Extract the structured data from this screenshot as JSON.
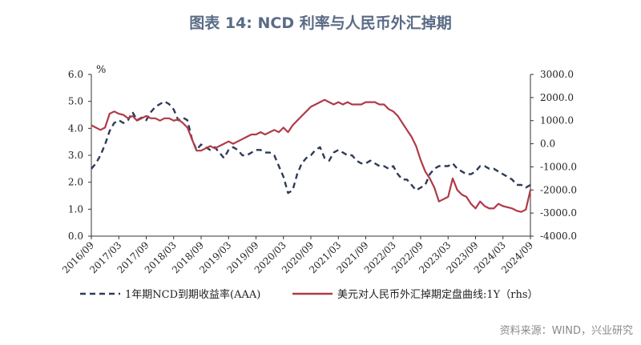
{
  "chart_data": {
    "type": "line",
    "title": "图表 14: NCD 利率与人民币外汇掉期",
    "left_unit": "%",
    "yaxis_left": {
      "ticks": [
        "6.0",
        "5.0",
        "4.0",
        "3.0",
        "2.0",
        "1.0",
        "0.0"
      ],
      "values": [
        6,
        5,
        4,
        3,
        2,
        1,
        0
      ],
      "ylim": [
        0,
        6
      ]
    },
    "yaxis_right": {
      "ticks": [
        "3000.0",
        "2000.0",
        "1000.0",
        "0.0",
        "-1000.0",
        "-2000.0",
        "-3000.0",
        "-4000.0"
      ],
      "values": [
        3000,
        2000,
        1000,
        0,
        -1000,
        -2000,
        -3000,
        -4000
      ],
      "ylim": [
        -4000,
        3000
      ]
    },
    "x_ticks": [
      "2016/09",
      "2017/03",
      "2017/09",
      "2018/03",
      "2018/09",
      "2019/03",
      "2019/09",
      "2020/03",
      "2020/09",
      "2021/03",
      "2021/09",
      "2022/03",
      "2022/09",
      "2023/03",
      "2023/09",
      "2024/03",
      "2024/09"
    ],
    "grid": false,
    "legend_position": "bottom",
    "series": [
      {
        "name": "1年期NCD到期收益率(AAA)",
        "axis": "left",
        "color": "#2e3a59",
        "style": "dashed",
        "points": [
          [
            "2016/09",
            2.5
          ],
          [
            "2016/10",
            2.7
          ],
          [
            "2016/11",
            3.0
          ],
          [
            "2016/12",
            3.4
          ],
          [
            "2017/01",
            3.9
          ],
          [
            "2017/02",
            4.2
          ],
          [
            "2017/03",
            4.3
          ],
          [
            "2017/04",
            4.2
          ],
          [
            "2017/05",
            4.3
          ],
          [
            "2017/06",
            4.6
          ],
          [
            "2017/07",
            4.3
          ],
          [
            "2017/08",
            4.4
          ],
          [
            "2017/09",
            4.3
          ],
          [
            "2017/10",
            4.6
          ],
          [
            "2017/11",
            4.8
          ],
          [
            "2017/12",
            4.9
          ],
          [
            "2018/01",
            5.0
          ],
          [
            "2018/02",
            4.9
          ],
          [
            "2018/03",
            4.7
          ],
          [
            "2018/04",
            4.3
          ],
          [
            "2018/05",
            4.4
          ],
          [
            "2018/06",
            4.3
          ],
          [
            "2018/07",
            3.6
          ],
          [
            "2018/08",
            3.2
          ],
          [
            "2018/09",
            3.4
          ],
          [
            "2018/10",
            3.3
          ],
          [
            "2018/11",
            3.2
          ],
          [
            "2018/12",
            3.3
          ],
          [
            "2019/01",
            3.1
          ],
          [
            "2019/02",
            2.9
          ],
          [
            "2019/03",
            3.2
          ],
          [
            "2019/04",
            3.3
          ],
          [
            "2019/05",
            3.2
          ],
          [
            "2019/06",
            3.0
          ],
          [
            "2019/07",
            3.0
          ],
          [
            "2019/08",
            3.1
          ],
          [
            "2019/09",
            3.2
          ],
          [
            "2019/10",
            3.2
          ],
          [
            "2019/11",
            3.1
          ],
          [
            "2019/12",
            3.1
          ],
          [
            "2020/01",
            3.0
          ],
          [
            "2020/02",
            2.6
          ],
          [
            "2020/03",
            2.2
          ],
          [
            "2020/04",
            1.6
          ],
          [
            "2020/05",
            1.7
          ],
          [
            "2020/06",
            2.3
          ],
          [
            "2020/07",
            2.7
          ],
          [
            "2020/08",
            2.9
          ],
          [
            "2020/09",
            3.0
          ],
          [
            "2020/10",
            3.2
          ],
          [
            "2020/11",
            3.3
          ],
          [
            "2020/12",
            2.9
          ],
          [
            "2021/01",
            2.8
          ],
          [
            "2021/02",
            3.1
          ],
          [
            "2021/03",
            3.2
          ],
          [
            "2021/04",
            3.1
          ],
          [
            "2021/05",
            3.0
          ],
          [
            "2021/06",
            3.0
          ],
          [
            "2021/07",
            2.8
          ],
          [
            "2021/08",
            2.7
          ],
          [
            "2021/09",
            2.7
          ],
          [
            "2021/10",
            2.8
          ],
          [
            "2021/11",
            2.7
          ],
          [
            "2021/12",
            2.6
          ],
          [
            "2022/01",
            2.6
          ],
          [
            "2022/02",
            2.5
          ],
          [
            "2022/03",
            2.6
          ],
          [
            "2022/04",
            2.3
          ],
          [
            "2022/05",
            2.1
          ],
          [
            "2022/06",
            2.1
          ],
          [
            "2022/07",
            1.9
          ],
          [
            "2022/08",
            1.7
          ],
          [
            "2022/09",
            1.8
          ],
          [
            "2022/10",
            1.9
          ],
          [
            "2022/11",
            2.3
          ],
          [
            "2022/12",
            2.5
          ],
          [
            "2023/01",
            2.6
          ],
          [
            "2023/02",
            2.6
          ],
          [
            "2023/03",
            2.6
          ],
          [
            "2023/04",
            2.7
          ],
          [
            "2023/05",
            2.5
          ],
          [
            "2023/06",
            2.4
          ],
          [
            "2023/07",
            2.3
          ],
          [
            "2023/08",
            2.3
          ],
          [
            "2023/09",
            2.4
          ],
          [
            "2023/10",
            2.6
          ],
          [
            "2023/11",
            2.6
          ],
          [
            "2023/12",
            2.5
          ],
          [
            "2024/01",
            2.5
          ],
          [
            "2024/02",
            2.4
          ],
          [
            "2024/03",
            2.3
          ],
          [
            "2024/04",
            2.2
          ],
          [
            "2024/05",
            2.1
          ],
          [
            "2024/06",
            1.9
          ],
          [
            "2024/07",
            1.9
          ],
          [
            "2024/08",
            1.8
          ],
          [
            "2024/09",
            1.9
          ]
        ]
      },
      {
        "name": "美元对人民币外汇掉期定盘曲线:1Y（rhs）",
        "axis": "right",
        "color": "#b03a48",
        "style": "solid",
        "points": [
          [
            "2016/09",
            800
          ],
          [
            "2016/10",
            700
          ],
          [
            "2016/11",
            600
          ],
          [
            "2016/12",
            700
          ],
          [
            "2017/01",
            1300
          ],
          [
            "2017/02",
            1400
          ],
          [
            "2017/03",
            1300
          ],
          [
            "2017/04",
            1250
          ],
          [
            "2017/05",
            1100
          ],
          [
            "2017/06",
            1200
          ],
          [
            "2017/07",
            1000
          ],
          [
            "2017/08",
            1100
          ],
          [
            "2017/09",
            1200
          ],
          [
            "2017/10",
            1100
          ],
          [
            "2017/11",
            1100
          ],
          [
            "2017/12",
            1000
          ],
          [
            "2018/01",
            1100
          ],
          [
            "2018/02",
            1100
          ],
          [
            "2018/03",
            1000
          ],
          [
            "2018/04",
            1050
          ],
          [
            "2018/05",
            900
          ],
          [
            "2018/06",
            700
          ],
          [
            "2018/07",
            200
          ],
          [
            "2018/08",
            -300
          ],
          [
            "2018/09",
            -300
          ],
          [
            "2018/10",
            -200
          ],
          [
            "2018/11",
            -100
          ],
          [
            "2018/12",
            -200
          ],
          [
            "2019/01",
            -100
          ],
          [
            "2019/02",
            0
          ],
          [
            "2019/03",
            100
          ],
          [
            "2019/04",
            0
          ],
          [
            "2019/05",
            100
          ],
          [
            "2019/06",
            200
          ],
          [
            "2019/07",
            300
          ],
          [
            "2019/08",
            400
          ],
          [
            "2019/09",
            400
          ],
          [
            "2019/10",
            500
          ],
          [
            "2019/11",
            400
          ],
          [
            "2019/12",
            500
          ],
          [
            "2020/01",
            600
          ],
          [
            "2020/02",
            500
          ],
          [
            "2020/03",
            700
          ],
          [
            "2020/04",
            500
          ],
          [
            "2020/05",
            800
          ],
          [
            "2020/06",
            1000
          ],
          [
            "2020/07",
            1200
          ],
          [
            "2020/08",
            1400
          ],
          [
            "2020/09",
            1600
          ],
          [
            "2020/10",
            1700
          ],
          [
            "2020/11",
            1800
          ],
          [
            "2020/12",
            1900
          ],
          [
            "2021/01",
            1800
          ],
          [
            "2021/02",
            1700
          ],
          [
            "2021/03",
            1800
          ],
          [
            "2021/04",
            1700
          ],
          [
            "2021/05",
            1800
          ],
          [
            "2021/06",
            1700
          ],
          [
            "2021/07",
            1700
          ],
          [
            "2021/08",
            1700
          ],
          [
            "2021/09",
            1800
          ],
          [
            "2021/10",
            1800
          ],
          [
            "2021/11",
            1800
          ],
          [
            "2021/12",
            1700
          ],
          [
            "2022/01",
            1700
          ],
          [
            "2022/02",
            1500
          ],
          [
            "2022/03",
            1400
          ],
          [
            "2022/04",
            1200
          ],
          [
            "2022/05",
            900
          ],
          [
            "2022/06",
            600
          ],
          [
            "2022/07",
            300
          ],
          [
            "2022/08",
            -100
          ],
          [
            "2022/09",
            -700
          ],
          [
            "2022/10",
            -1200
          ],
          [
            "2022/11",
            -1500
          ],
          [
            "2022/12",
            -1900
          ],
          [
            "2023/01",
            -2500
          ],
          [
            "2023/02",
            -2400
          ],
          [
            "2023/03",
            -2300
          ],
          [
            "2023/04",
            -1500
          ],
          [
            "2023/05",
            -2000
          ],
          [
            "2023/06",
            -2200
          ],
          [
            "2023/07",
            -2300
          ],
          [
            "2023/08",
            -2600
          ],
          [
            "2023/09",
            -2800
          ],
          [
            "2023/10",
            -2500
          ],
          [
            "2023/11",
            -2700
          ],
          [
            "2023/12",
            -2800
          ],
          [
            "2024/01",
            -2800
          ],
          [
            "2024/02",
            -2600
          ],
          [
            "2024/03",
            -2700
          ],
          [
            "2024/04",
            -2750
          ],
          [
            "2024/05",
            -2800
          ],
          [
            "2024/06",
            -2900
          ],
          [
            "2024/07",
            -2950
          ],
          [
            "2024/08",
            -2850
          ],
          [
            "2024/09",
            -2000
          ]
        ]
      }
    ]
  },
  "source_text": "资料来源：WIND，兴业研究"
}
